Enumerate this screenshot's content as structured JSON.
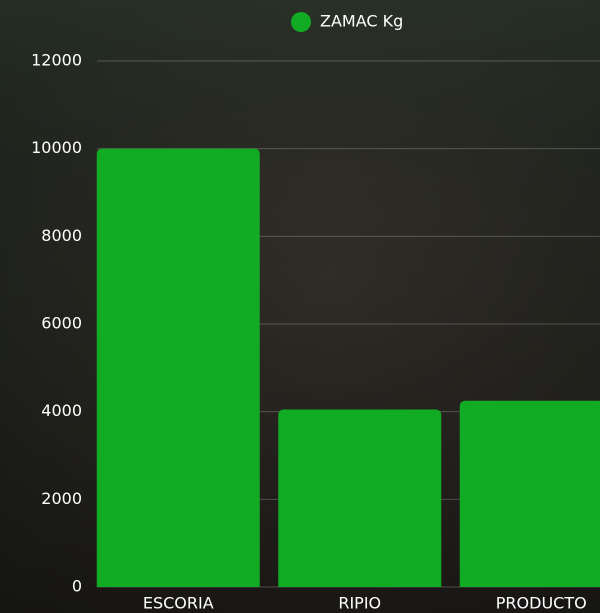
{
  "chart_data": {
    "type": "bar",
    "series": [
      {
        "name": "ZAMAC Kg",
        "color": "#12ab24",
        "values": [
          10000,
          4050,
          4250
        ]
      }
    ],
    "categories": [
      "ESCORIA",
      "RIPIO",
      "PRODUCTO"
    ],
    "ylim": [
      0,
      12000
    ],
    "yticks": [
      0,
      2000,
      4000,
      6000,
      8000,
      10000,
      12000
    ],
    "grid": true,
    "legend": "top"
  }
}
